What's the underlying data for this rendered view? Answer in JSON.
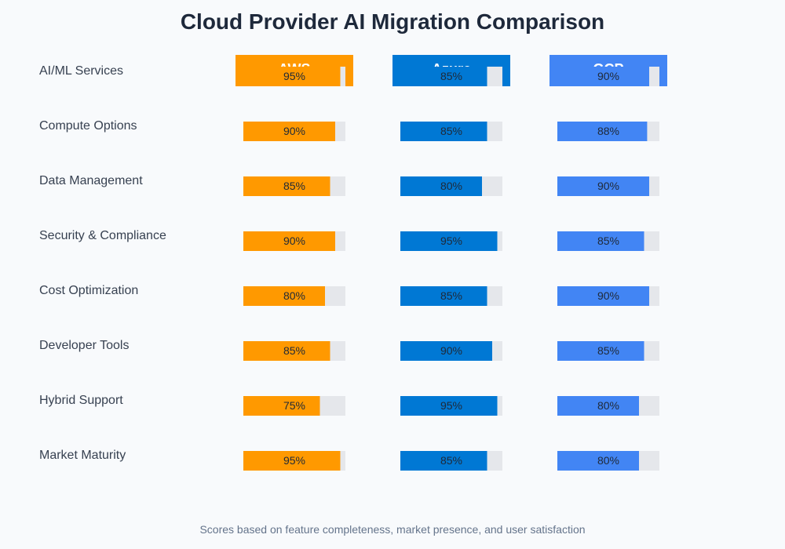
{
  "chart_data": {
    "type": "bar",
    "title": "Cloud Provider AI Migration Comparison",
    "footnote": "Scores based on feature completeness, market presence, and user satisfaction",
    "categories": [
      "AI/ML Services",
      "Compute Options",
      "Data Management",
      "Security & Compliance",
      "Cost Optimization",
      "Developer Tools",
      "Hybrid Support",
      "Market Maturity"
    ],
    "series": [
      {
        "name": "AWS",
        "color": "#ff9900",
        "values": [
          95,
          90,
          85,
          90,
          80,
          85,
          75,
          95
        ]
      },
      {
        "name": "Azure",
        "color": "#0078d4",
        "values": [
          85,
          85,
          80,
          95,
          85,
          90,
          95,
          85
        ]
      },
      {
        "name": "GCP",
        "color": "#4285f4",
        "values": [
          90,
          88,
          90,
          85,
          90,
          85,
          80,
          80
        ]
      }
    ],
    "value_suffix": "%",
    "ylim": [
      0,
      100
    ],
    "track_color": "#e5e7eb"
  }
}
